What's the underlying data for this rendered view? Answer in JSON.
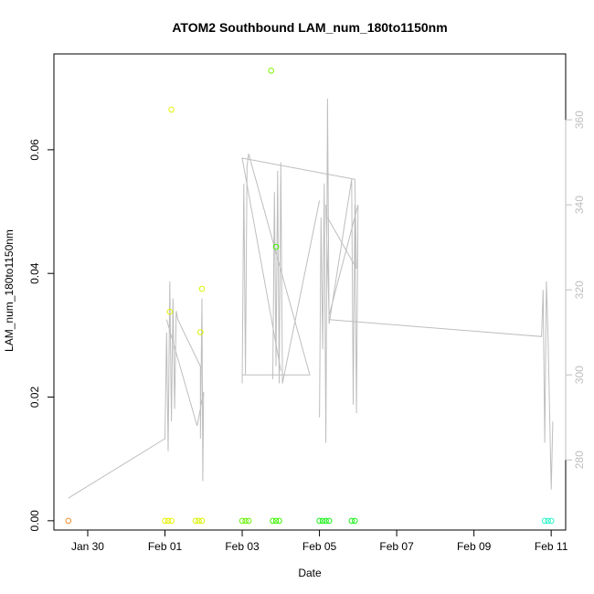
{
  "chart_data": {
    "type": "scatter",
    "title": "ATOM2 Southbound LAM_num_180to1150nm",
    "xlabel": "Date",
    "ylabel": "LAM_num_180to1150nm",
    "xlim": [
      "2017-01-29T03:00",
      "2017-02-11T09:00"
    ],
    "ylim": [
      -0.0015,
      0.0755
    ],
    "x_ticks": [
      {
        "value": "2017-01-30",
        "label": "Jan 30"
      },
      {
        "value": "2017-02-01",
        "label": "Feb 01"
      },
      {
        "value": "2017-02-03",
        "label": "Feb 03"
      },
      {
        "value": "2017-02-05",
        "label": "Feb 05"
      },
      {
        "value": "2017-02-07",
        "label": "Feb 07"
      },
      {
        "value": "2017-02-09",
        "label": "Feb 09"
      },
      {
        "value": "2017-02-11",
        "label": "Feb 11"
      }
    ],
    "y_ticks": [
      "0.00",
      "0.02",
      "0.04",
      "0.06"
    ],
    "y2_ticks": [
      "280",
      "300",
      "320",
      "340",
      "360"
    ],
    "y2lim": [
      263.5,
      375.5
    ],
    "grid": false,
    "points": [
      {
        "x": "2017-01-29T12:00",
        "y": 0.0,
        "color": "#f28c28"
      },
      {
        "x": "2017-02-01T00:00",
        "y": 0.0,
        "color": "#e6f200"
      },
      {
        "x": "2017-02-01T02:00",
        "y": 0.0,
        "color": "#e6f200"
      },
      {
        "x": "2017-02-01T04:00",
        "y": 0.0,
        "color": "#e6f200"
      },
      {
        "x": "2017-02-01T03:00",
        "y": 0.0338,
        "color": "#e6f200"
      },
      {
        "x": "2017-02-01T04:00",
        "y": 0.0665,
        "color": "#e6f200"
      },
      {
        "x": "2017-02-01T19:00",
        "y": 0.0,
        "color": "#d8f200"
      },
      {
        "x": "2017-02-01T21:00",
        "y": 0.0,
        "color": "#d8f200"
      },
      {
        "x": "2017-02-01T23:00",
        "y": 0.0,
        "color": "#d8f200"
      },
      {
        "x": "2017-02-01T22:00",
        "y": 0.0305,
        "color": "#d8f200"
      },
      {
        "x": "2017-02-01T23:00",
        "y": 0.0375,
        "color": "#d8f200"
      },
      {
        "x": "2017-02-03T00:00",
        "y": 0.0,
        "color": "#66f200"
      },
      {
        "x": "2017-02-03T02:00",
        "y": 0.0,
        "color": "#66f200"
      },
      {
        "x": "2017-02-03T04:00",
        "y": 0.0,
        "color": "#66f200"
      },
      {
        "x": "2017-02-03T19:00",
        "y": 0.0,
        "color": "#3cf200"
      },
      {
        "x": "2017-02-03T21:00",
        "y": 0.0,
        "color": "#3cf200"
      },
      {
        "x": "2017-02-03T23:00",
        "y": 0.0,
        "color": "#3cf200"
      },
      {
        "x": "2017-02-03T18:00",
        "y": 0.0728,
        "color": "#7df200"
      },
      {
        "x": "2017-02-03T21:00",
        "y": 0.0443,
        "color": "#3cf200"
      },
      {
        "x": "2017-02-05T00:00",
        "y": 0.0,
        "color": "#14f214"
      },
      {
        "x": "2017-02-05T02:00",
        "y": 0.0,
        "color": "#14f214"
      },
      {
        "x": "2017-02-05T04:00",
        "y": 0.0,
        "color": "#14f214"
      },
      {
        "x": "2017-02-05T06:00",
        "y": 0.0,
        "color": "#14f214"
      },
      {
        "x": "2017-02-05T20:00",
        "y": 0.0,
        "color": "#14f214"
      },
      {
        "x": "2017-02-05T22:00",
        "y": 0.0,
        "color": "#14f214"
      },
      {
        "x": "2017-02-10T20:00",
        "y": 0.0,
        "color": "#28f2c8"
      },
      {
        "x": "2017-02-10T22:00",
        "y": 0.0,
        "color": "#28f2c8"
      },
      {
        "x": "2017-02-11T00:00",
        "y": 0.0,
        "color": "#28f2c8"
      }
    ],
    "line_series": {
      "axis": "right",
      "color": "#bebebe",
      "segments": [
        [
          [
            "2017-01-29T12:00",
            271
          ],
          [
            "2017-02-01T00:00",
            285
          ],
          [
            "2017-02-01T01:00",
            310
          ],
          [
            "2017-02-01T02:00",
            282
          ],
          [
            "2017-02-01T03:00",
            322
          ],
          [
            "2017-02-01T04:00",
            289
          ],
          [
            "2017-02-01T05:00",
            318
          ],
          [
            "2017-02-01T06:00",
            292
          ],
          [
            "2017-02-01T07:00",
            315
          ],
          [
            "2017-02-01T08:00",
            313
          ],
          [
            "2017-02-01T22:00",
            302
          ],
          [
            "2017-02-01T22:00",
            285
          ],
          [
            "2017-02-01T23:00",
            318
          ],
          [
            "2017-02-01T23:30",
            275
          ],
          [
            "2017-02-02T00:00",
            296
          ],
          [
            "2017-02-01T20:00",
            288
          ],
          [
            "2017-02-01T01:00",
            313
          ]
        ],
        [
          [
            "2017-02-03T00:00",
            298
          ],
          [
            "2017-02-03T01:00",
            345
          ],
          [
            "2017-02-03T02:00",
            300
          ],
          [
            "2017-02-03T03:00",
            349
          ],
          [
            "2017-02-03T04:00",
            352
          ],
          [
            "2017-02-04T18:00",
            300
          ],
          [
            "2017-02-03T00:00",
            300
          ]
        ],
        [
          [
            "2017-02-03T19:00",
            299
          ],
          [
            "2017-02-03T20:00",
            343
          ],
          [
            "2017-02-03T21:00",
            302
          ],
          [
            "2017-02-03T22:00",
            348
          ],
          [
            "2017-02-03T23:00",
            298
          ],
          [
            "2017-02-04T00:00",
            350
          ],
          [
            "2017-02-04T01:00",
            298
          ],
          [
            "2017-02-05T00:00",
            341
          ]
        ],
        [
          [
            "2017-02-05T00:00",
            290
          ],
          [
            "2017-02-05T01:00",
            337
          ],
          [
            "2017-02-05T02:00",
            306
          ],
          [
            "2017-02-05T03:00",
            345
          ],
          [
            "2017-02-05T04:00",
            284
          ],
          [
            "2017-02-05T05:00",
            365
          ],
          [
            "2017-02-05T06:00",
            312
          ],
          [
            "2017-02-05T20:00",
            346
          ],
          [
            "2017-02-05T21:00",
            293
          ],
          [
            "2017-02-05T22:00",
            340
          ],
          [
            "2017-02-05T23:00",
            291
          ],
          [
            "2017-02-06T00:00",
            340
          ],
          [
            "2017-02-05T06:00",
            314
          ],
          [
            "2017-02-05T04:00",
            340
          ]
        ],
        [
          [
            "2017-02-04T00:00",
            301
          ],
          [
            "2017-02-03T00:00",
            351
          ],
          [
            "2017-02-05T22:00",
            346
          ],
          [
            "2017-02-05T23:00",
            325
          ],
          [
            "2017-02-05T05:00",
            337
          ]
        ],
        [
          [
            "2017-02-05T06:00",
            313
          ],
          [
            "2017-02-10T18:00",
            309
          ],
          [
            "2017-02-10T19:00",
            320
          ],
          [
            "2017-02-10T20:00",
            284
          ],
          [
            "2017-02-10T21:00",
            322
          ],
          [
            "2017-02-10T22:00",
            310
          ],
          [
            "2017-02-11T00:00",
            273
          ],
          [
            "2017-02-11T01:00",
            289
          ]
        ]
      ]
    }
  }
}
